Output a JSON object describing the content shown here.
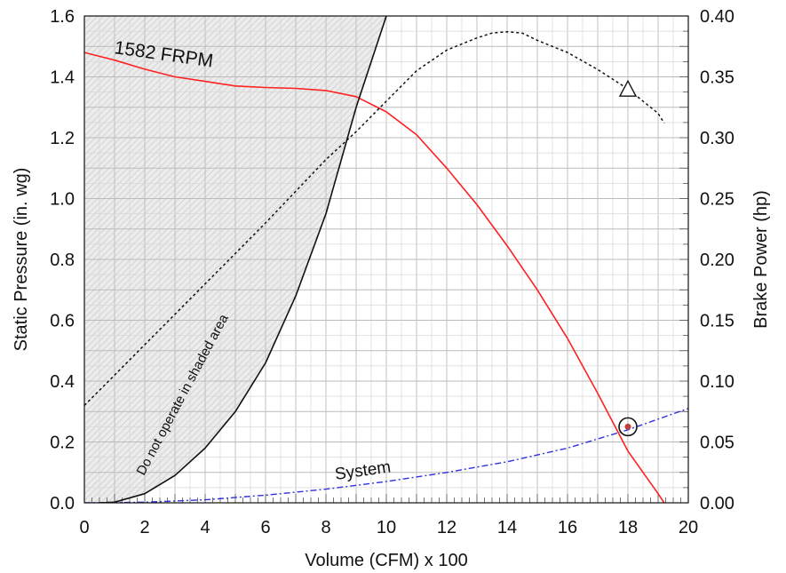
{
  "chart_data": {
    "type": "line",
    "xlabel": "Volume (CFM) x 100",
    "ylabel": "Static Pressure (in. wg)",
    "y2label": "Brake Power (hp)",
    "xlim": [
      0,
      20
    ],
    "ylim": [
      0,
      1.6
    ],
    "y2lim": [
      0,
      0.4
    ],
    "grid": true,
    "x_ticks": [
      "0",
      "2",
      "4",
      "6",
      "8",
      "10",
      "12",
      "14",
      "16",
      "18",
      "20"
    ],
    "y_ticks": [
      "0.0",
      "0.2",
      "0.4",
      "0.6",
      "0.8",
      "1.0",
      "1.2",
      "1.4",
      "1.6"
    ],
    "y2_ticks": [
      "0.00",
      "0.05",
      "0.10",
      "0.15",
      "0.20",
      "0.25",
      "0.30",
      "0.35",
      "0.40"
    ],
    "series": [
      {
        "name": "1582 FRPM",
        "axis": "left",
        "color": "#ff2020",
        "style": "solid",
        "x": [
          0,
          1,
          2,
          3,
          4,
          5,
          6,
          7,
          8,
          9,
          10,
          11,
          12,
          13,
          14,
          15,
          16,
          17,
          18,
          19,
          19.2
        ],
        "y": [
          1.48,
          1.455,
          1.425,
          1.4,
          1.385,
          1.37,
          1.365,
          1.362,
          1.355,
          1.335,
          1.285,
          1.21,
          1.1,
          0.98,
          0.845,
          0.7,
          0.54,
          0.36,
          0.17,
          0.03,
          0.0
        ]
      },
      {
        "name": "System",
        "axis": "left",
        "color": "#3030e0",
        "style": "dash-dot",
        "x": [
          0,
          2,
          4,
          6,
          8,
          10,
          12,
          14,
          16,
          18,
          20
        ],
        "y": [
          0.0,
          0.002,
          0.01,
          0.025,
          0.045,
          0.07,
          0.1,
          0.135,
          0.18,
          0.24,
          0.31
        ]
      },
      {
        "axis": "right",
        "color": "#111111",
        "style": "dotted",
        "x": [
          0,
          1,
          2,
          3,
          4,
          5,
          6,
          7,
          8,
          9,
          10,
          11,
          12,
          13,
          13.5,
          14,
          14.5,
          15,
          16,
          17,
          18,
          19,
          19.2
        ],
        "y": [
          0.08,
          0.105,
          0.13,
          0.155,
          0.18,
          0.205,
          0.23,
          0.256,
          0.282,
          0.305,
          0.33,
          0.355,
          0.372,
          0.382,
          0.386,
          0.387,
          0.386,
          0.38,
          0.37,
          0.356,
          0.34,
          0.32,
          0.312
        ]
      },
      {
        "axis": "left",
        "color": "#111111",
        "style": "solid",
        "x": [
          0.5,
          1,
          2,
          3,
          4,
          5,
          6,
          7,
          8,
          9,
          10
        ],
        "y": [
          0.0,
          0.002,
          0.03,
          0.09,
          0.18,
          0.3,
          0.46,
          0.68,
          0.95,
          1.3,
          1.6
        ]
      }
    ],
    "operating_point": {
      "x": 18,
      "y": 0.25
    },
    "bhp_marker": {
      "x": 18,
      "y": 0.34
    },
    "annotations": {
      "curve_label": "1582  FRPM",
      "system_label": "System",
      "shaded_label": "Do  not  operate  in  shaded    area"
    },
    "colors": {
      "fan_curve": "#ff2020",
      "system_curve": "#3030e0",
      "shaded_fill": "#e6e6e6",
      "grid": "#bbbbbb",
      "operating_point": "#c04040"
    }
  }
}
